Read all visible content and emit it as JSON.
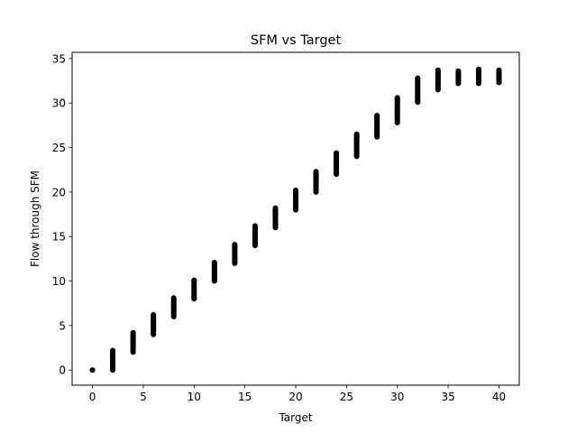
{
  "chart_data": {
    "type": "scatter",
    "title": "SFM vs Target",
    "xlabel": "Target",
    "ylabel": "Flow through SFM",
    "xlim": [
      -2,
      42
    ],
    "ylim": [
      -1.7,
      35.7
    ],
    "xticks": [
      0,
      5,
      10,
      15,
      20,
      25,
      30,
      35,
      40
    ],
    "yticks": [
      0,
      5,
      10,
      15,
      20,
      25,
      30,
      35
    ],
    "grid": false,
    "marker_color": "#000000",
    "series": [
      {
        "clusters": [
          {
            "x": 0,
            "ymin": 0.0,
            "ymax": 0.0
          },
          {
            "x": 2,
            "ymin": 0.0,
            "ymax": 2.2
          },
          {
            "x": 4,
            "ymin": 2.0,
            "ymax": 4.2
          },
          {
            "x": 6,
            "ymin": 4.0,
            "ymax": 6.2
          },
          {
            "x": 8,
            "ymin": 6.0,
            "ymax": 8.1
          },
          {
            "x": 10,
            "ymin": 8.0,
            "ymax": 10.1
          },
          {
            "x": 12,
            "ymin": 10.0,
            "ymax": 12.1
          },
          {
            "x": 14,
            "ymin": 12.0,
            "ymax": 14.1
          },
          {
            "x": 16,
            "ymin": 14.0,
            "ymax": 16.2
          },
          {
            "x": 18,
            "ymin": 16.0,
            "ymax": 18.2
          },
          {
            "x": 20,
            "ymin": 18.0,
            "ymax": 20.2
          },
          {
            "x": 22,
            "ymin": 20.0,
            "ymax": 22.3
          },
          {
            "x": 24,
            "ymin": 22.0,
            "ymax": 24.4
          },
          {
            "x": 26,
            "ymin": 24.0,
            "ymax": 26.5
          },
          {
            "x": 28,
            "ymin": 26.2,
            "ymax": 28.6
          },
          {
            "x": 30,
            "ymin": 27.8,
            "ymax": 30.6
          },
          {
            "x": 32,
            "ymin": 30.1,
            "ymax": 32.8
          },
          {
            "x": 34,
            "ymin": 31.5,
            "ymax": 33.7
          },
          {
            "x": 36,
            "ymin": 32.2,
            "ymax": 33.6
          },
          {
            "x": 38,
            "ymin": 32.2,
            "ymax": 33.8
          },
          {
            "x": 40,
            "ymin": 32.3,
            "ymax": 33.7
          }
        ]
      }
    ]
  }
}
